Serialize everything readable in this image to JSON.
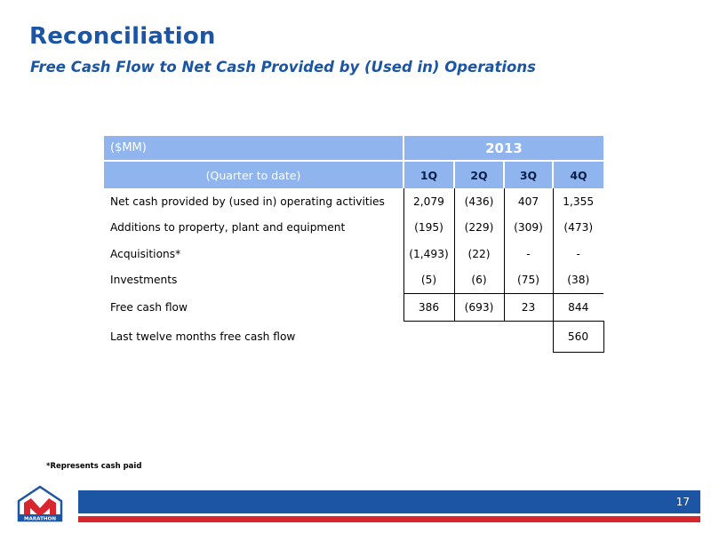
{
  "title": "Reconciliation",
  "subtitle": "Free Cash Flow to Net Cash Provided by (Used in) Operations",
  "table": {
    "unit_label": "($MM)",
    "year": "2013",
    "period_label": "(Quarter to date)",
    "quarters": [
      "1Q",
      "2Q",
      "3Q",
      "4Q"
    ],
    "rows": [
      {
        "label": "Net cash provided by (used in) operating activities",
        "values": [
          "2,079",
          "(436)",
          "407",
          "1,355"
        ]
      },
      {
        "label": "Additions to property, plant and equipment",
        "values": [
          "(195)",
          "(229)",
          "(309)",
          "(473)"
        ]
      },
      {
        "label": "Acquisitions*",
        "values": [
          "(1,493)",
          "(22)",
          "-",
          "-"
        ]
      },
      {
        "label": "Investments",
        "values": [
          "(5)",
          "(6)",
          "(75)",
          "(38)"
        ]
      }
    ],
    "free_cash_flow": {
      "label": "Free cash flow",
      "values": [
        "386",
        "(693)",
        "23",
        "844"
      ]
    },
    "ltm": {
      "label": "Last twelve months free cash flow",
      "value": "560"
    }
  },
  "footnote": "*Represents cash paid",
  "page_number": "17",
  "logo": {
    "text": "MARATHON",
    "icon": "marathon-logo-icon",
    "colors": {
      "red": "#d7262d",
      "blue": "#1c55a3"
    }
  },
  "colors": {
    "title": "#1c55a3",
    "header_fill": "#8fb4ee",
    "footer_blue": "#1c55a3",
    "footer_red": "#d7262d"
  }
}
